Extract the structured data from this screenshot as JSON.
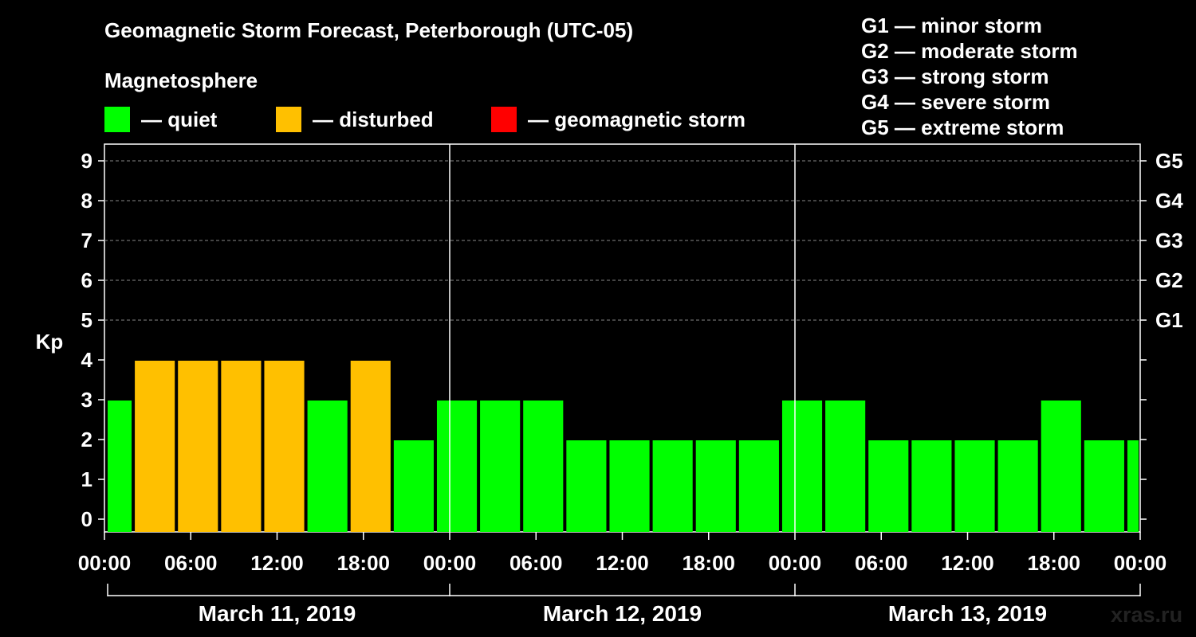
{
  "header": {
    "title": "Geomagnetic Storm Forecast, Peterborough (UTC-05)",
    "subtitle": "Magnetosphere"
  },
  "legend": {
    "items": [
      {
        "label": "— quiet",
        "color": "#00ff00"
      },
      {
        "label": "— disturbed",
        "color": "#ffc000"
      },
      {
        "label": "— geomagnetic storm",
        "color": "#ff0000"
      }
    ]
  },
  "storm_scale": [
    "G1 — minor storm",
    "G2 — moderate storm",
    "G3 — strong storm",
    "G4 — severe storm",
    "G5 — extreme storm"
  ],
  "watermark": "xras.ru",
  "chart_data": {
    "type": "bar",
    "title": "Geomagnetic Storm Forecast, Peterborough (UTC-05)",
    "ylabel": "Kp",
    "ylim": [
      0,
      9
    ],
    "yticks": [
      "0",
      "1",
      "2",
      "3",
      "4",
      "5",
      "6",
      "7",
      "8",
      "9"
    ],
    "right_ticks": [
      {
        "kp": 5,
        "label": "G1"
      },
      {
        "kp": 6,
        "label": "G2"
      },
      {
        "kp": 7,
        "label": "G3"
      },
      {
        "kp": 8,
        "label": "G4"
      },
      {
        "kp": 9,
        "label": "G5"
      }
    ],
    "x_tick_labels": [
      "00:00",
      "06:00",
      "12:00",
      "18:00",
      "00:00",
      "06:00",
      "12:00",
      "18:00",
      "00:00",
      "06:00",
      "12:00",
      "18:00",
      "00:00"
    ],
    "days": [
      "March 11, 2019",
      "March 12, 2019",
      "March 13, 2019"
    ],
    "interval_hours": 3,
    "bars": [
      {
        "start_hour": -1,
        "kp": 3,
        "status": "quiet"
      },
      {
        "start_hour": 2,
        "kp": 4,
        "status": "disturbed"
      },
      {
        "start_hour": 5,
        "kp": 4,
        "status": "disturbed"
      },
      {
        "start_hour": 8,
        "kp": 4,
        "status": "disturbed"
      },
      {
        "start_hour": 11,
        "kp": 4,
        "status": "disturbed"
      },
      {
        "start_hour": 14,
        "kp": 3,
        "status": "quiet"
      },
      {
        "start_hour": 17,
        "kp": 4,
        "status": "disturbed"
      },
      {
        "start_hour": 20,
        "kp": 2,
        "status": "quiet"
      },
      {
        "start_hour": 23,
        "kp": 3,
        "status": "quiet"
      },
      {
        "start_hour": 26,
        "kp": 3,
        "status": "quiet"
      },
      {
        "start_hour": 29,
        "kp": 3,
        "status": "quiet"
      },
      {
        "start_hour": 32,
        "kp": 2,
        "status": "quiet"
      },
      {
        "start_hour": 35,
        "kp": 2,
        "status": "quiet"
      },
      {
        "start_hour": 38,
        "kp": 2,
        "status": "quiet"
      },
      {
        "start_hour": 41,
        "kp": 2,
        "status": "quiet"
      },
      {
        "start_hour": 44,
        "kp": 2,
        "status": "quiet"
      },
      {
        "start_hour": 47,
        "kp": 3,
        "status": "quiet"
      },
      {
        "start_hour": 50,
        "kp": 3,
        "status": "quiet"
      },
      {
        "start_hour": 53,
        "kp": 2,
        "status": "quiet"
      },
      {
        "start_hour": 56,
        "kp": 2,
        "status": "quiet"
      },
      {
        "start_hour": 59,
        "kp": 2,
        "status": "quiet"
      },
      {
        "start_hour": 62,
        "kp": 2,
        "status": "quiet"
      },
      {
        "start_hour": 65,
        "kp": 3,
        "status": "quiet"
      },
      {
        "start_hour": 68,
        "kp": 2,
        "status": "quiet"
      },
      {
        "start_hour": 71,
        "kp": 2,
        "status": "quiet"
      }
    ],
    "status_colors": {
      "quiet": "#00ff00",
      "disturbed": "#ffc000",
      "storm": "#ff0000"
    },
    "grid": true
  }
}
